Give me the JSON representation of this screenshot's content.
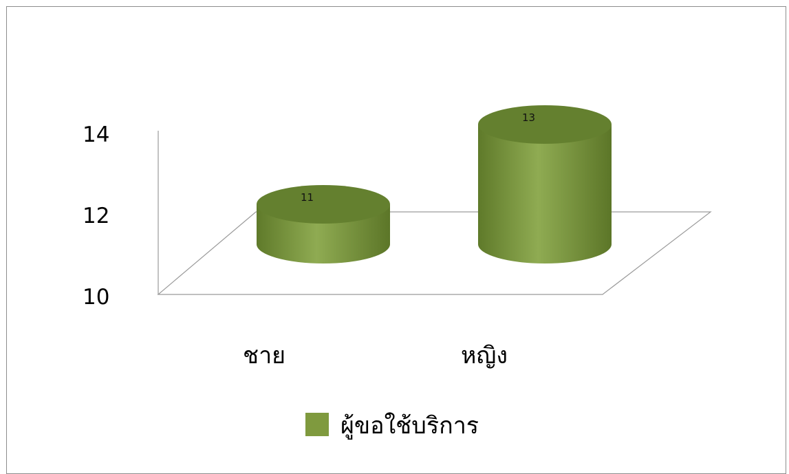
{
  "chart_data": {
    "type": "bar",
    "style": "3d-cylinder",
    "categories": [
      "ชาย",
      "หญิง"
    ],
    "series": [
      {
        "name": "ผู้ขอใช้บริการ",
        "values": [
          11,
          13
        ],
        "color": "#7f9a3e"
      }
    ],
    "data_labels": [
      "11",
      "13"
    ],
    "y_ticks": [
      "10",
      "12",
      "14"
    ],
    "ylim": [
      10,
      14
    ],
    "grid": false,
    "legend_position": "bottom"
  }
}
